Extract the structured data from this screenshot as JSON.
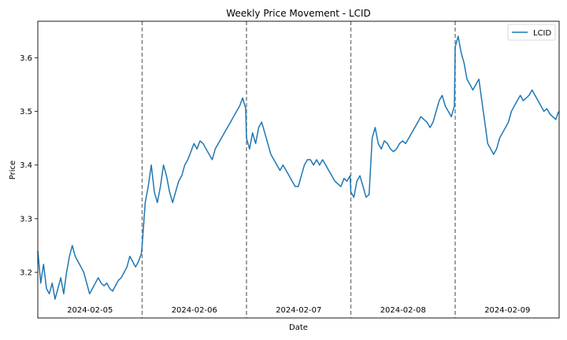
{
  "chart_data": {
    "type": "line",
    "title": "Weekly Price Movement - LCID",
    "xlabel": "Date",
    "ylabel": "Price",
    "ylim": [
      3.115,
      3.668
    ],
    "yticks": [
      "3.2",
      "3.3",
      "3.4",
      "3.5",
      "3.6"
    ],
    "grid": false,
    "legend_position": "top-right",
    "day_separators": "dashed",
    "days": [
      {
        "label": "2024-02-05",
        "prices": [
          3.24,
          3.18,
          3.215,
          3.17,
          3.16,
          3.18,
          3.15,
          3.17,
          3.19,
          3.16,
          3.2,
          3.23,
          3.25,
          3.23,
          3.22,
          3.21,
          3.2,
          3.18,
          3.16,
          3.17,
          3.18,
          3.19,
          3.18,
          3.175,
          3.18,
          3.17,
          3.165,
          3.175,
          3.185,
          3.19,
          3.2,
          3.21,
          3.23,
          3.22,
          3.21,
          3.22,
          3.235
        ]
      },
      {
        "label": "2024-02-06",
        "prices": [
          3.25,
          3.33,
          3.36,
          3.4,
          3.35,
          3.33,
          3.36,
          3.4,
          3.38,
          3.35,
          3.33,
          3.35,
          3.37,
          3.38,
          3.4,
          3.41,
          3.425,
          3.44,
          3.43,
          3.445,
          3.44,
          3.43,
          3.42,
          3.41,
          3.43,
          3.44,
          3.45,
          3.46,
          3.47,
          3.48,
          3.49,
          3.5,
          3.51,
          3.525,
          3.505
        ]
      },
      {
        "label": "2024-02-07",
        "prices": [
          3.45,
          3.43,
          3.46,
          3.44,
          3.47,
          3.48,
          3.46,
          3.44,
          3.42,
          3.41,
          3.4,
          3.39,
          3.4,
          3.39,
          3.38,
          3.37,
          3.36,
          3.36,
          3.38,
          3.4,
          3.41,
          3.41,
          3.4,
          3.41,
          3.4,
          3.41,
          3.4,
          3.39,
          3.38,
          3.37,
          3.365,
          3.36,
          3.375,
          3.37,
          3.38
        ]
      },
      {
        "label": "2024-02-08",
        "prices": [
          3.35,
          3.34,
          3.37,
          3.38,
          3.36,
          3.34,
          3.345,
          3.45,
          3.47,
          3.44,
          3.43,
          3.445,
          3.44,
          3.43,
          3.425,
          3.43,
          3.44,
          3.445,
          3.44,
          3.45,
          3.46,
          3.47,
          3.48,
          3.49,
          3.485,
          3.48,
          3.47,
          3.48,
          3.5,
          3.52,
          3.53,
          3.51,
          3.5,
          3.49,
          3.51
        ]
      },
      {
        "label": "2024-02-09",
        "prices": [
          3.62,
          3.64,
          3.61,
          3.59,
          3.56,
          3.55,
          3.54,
          3.55,
          3.56,
          3.52,
          3.48,
          3.44,
          3.43,
          3.42,
          3.43,
          3.45,
          3.46,
          3.47,
          3.48,
          3.5,
          3.51,
          3.52,
          3.53,
          3.52,
          3.525,
          3.53,
          3.54,
          3.53,
          3.52,
          3.51,
          3.5,
          3.505,
          3.495,
          3.49,
          3.485,
          3.5
        ]
      }
    ],
    "series": [
      {
        "name": "LCID",
        "color": "#1f77b4"
      }
    ]
  }
}
